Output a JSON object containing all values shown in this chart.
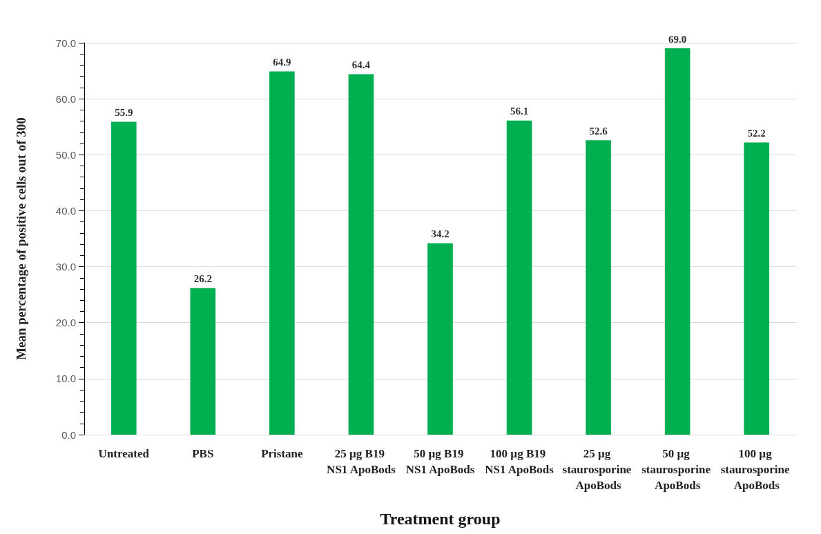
{
  "chart_data": {
    "type": "bar",
    "xlabel": "Treatment group",
    "ylabel": "Mean percentage of positive cells out of 300",
    "categories": [
      "Untreated",
      "PBS",
      "Pristane",
      "25 µg B19 NS1 ApoBods",
      "50 µg B19 NS1 ApoBods",
      "100 µg B19 NS1 ApoBods",
      "25 µg staurosporine ApoBods",
      "50 µg staurosporine ApoBods",
      "100 µg staurosporine ApoBods"
    ],
    "values": [
      55.9,
      26.2,
      64.9,
      64.4,
      34.2,
      56.1,
      52.6,
      69.0,
      52.2
    ],
    "color": "#00b050",
    "data_labels": true,
    "value_labels": [
      "55.9",
      "26.2",
      "64.9",
      "64.4",
      "34.2",
      "56.1",
      "52.6",
      "69.0",
      "52.2"
    ],
    "ylim": [
      0,
      70
    ],
    "yticks": [
      {
        "value": 0,
        "label": "0.0"
      },
      {
        "value": 10,
        "label": "10.0"
      },
      {
        "value": 20,
        "label": "20.0"
      },
      {
        "value": 30,
        "label": "30.0"
      },
      {
        "value": 40,
        "label": "40.0"
      },
      {
        "value": 50,
        "label": "50.0"
      },
      {
        "value": 60,
        "label": "60.0"
      },
      {
        "value": 70,
        "label": "70.0"
      }
    ],
    "grid": "y"
  }
}
